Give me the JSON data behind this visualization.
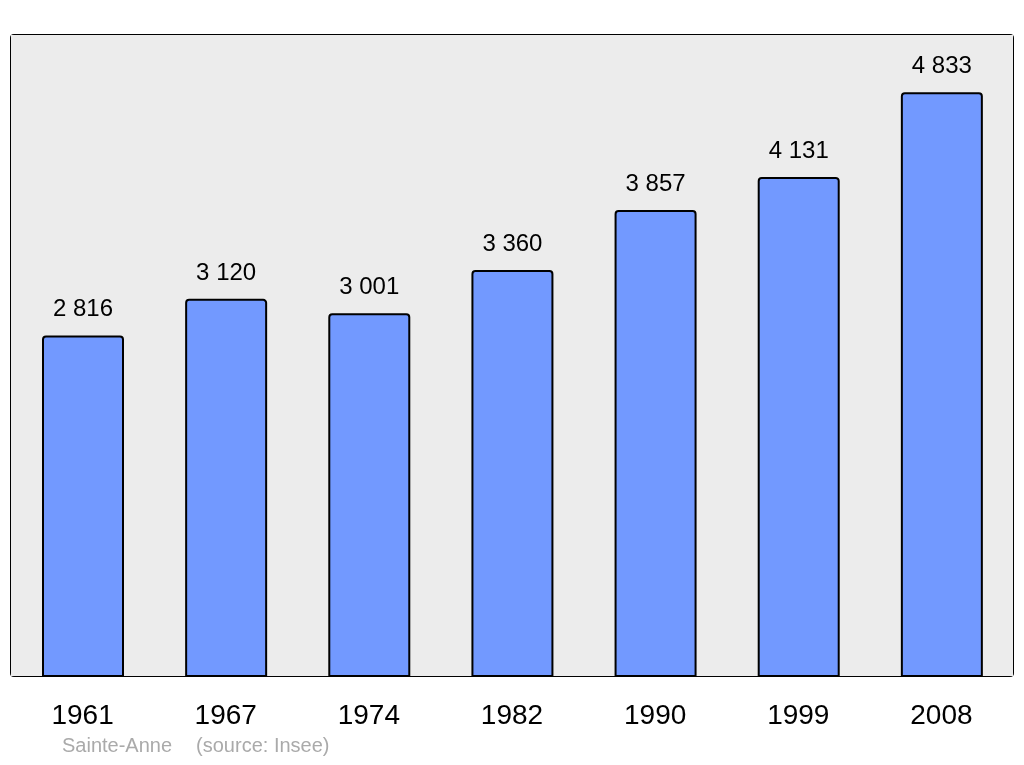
{
  "chart_data": {
    "type": "bar",
    "categories": [
      "1961",
      "1967",
      "1974",
      "1982",
      "1990",
      "1999",
      "2008"
    ],
    "values": [
      2816,
      3120,
      3001,
      3360,
      3857,
      4131,
      4833
    ],
    "value_labels": [
      "2 816",
      "3 120",
      "3 001",
      "3 360",
      "3 857",
      "4 131",
      "4 833"
    ],
    "color": "#7299ff",
    "annotations": [
      "Sainte-Anne",
      "(source: Insee)"
    ]
  }
}
